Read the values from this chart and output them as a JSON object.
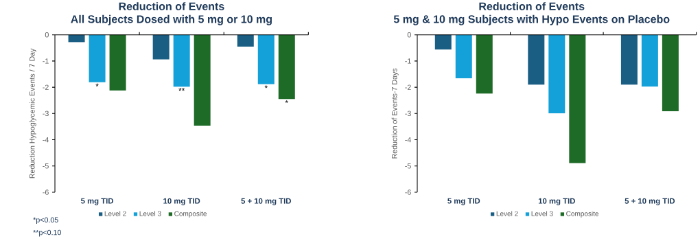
{
  "chart_data": [
    {
      "type": "bar",
      "title": "Reduction of Events",
      "subtitle": "All Subjects Dosed with 5 mg or 10 mg",
      "ylabel": "Reduction  Hypoglycemic Events / 7 Day",
      "categories": [
        "5 mg TID",
        "10 mg TID",
        "5 + 10 mg TID"
      ],
      "series": [
        {
          "name": "Level 2",
          "color": "#1a5e84",
          "values": [
            -0.28,
            -0.94,
            -0.45
          ]
        },
        {
          "name": "Level 3",
          "color": "#14a0d8",
          "values": [
            -1.81,
            -1.98,
            -1.88
          ]
        },
        {
          "name": "Composite",
          "color": "#1e6b27",
          "values": [
            -2.12,
            -3.46,
            -2.45
          ]
        }
      ],
      "ylim": [
        -6,
        0
      ],
      "yticks": [
        -6,
        -5,
        -4,
        -3,
        -2,
        -1,
        0
      ],
      "grid": false,
      "legend": "bottom",
      "annotations": [
        {
          "text": "*",
          "x": "5 mg TID",
          "y": -1.81
        },
        {
          "text": "**",
          "x": "10 mg TID",
          "y": -1.98
        },
        {
          "text": "*",
          "x": "5 + 10 mg TID",
          "y": -1.88
        },
        "*",
        "*p<0.05",
        "**p<0.10"
      ]
    },
    {
      "type": "bar",
      "title": "Reduction of Events",
      "subtitle": "5 mg & 10 mg Subjects with Hypo Events on Placebo",
      "ylabel": "Reduction of Events-7 Days",
      "categories": [
        "5 mg TID",
        "10 mg TID",
        "5 + 10 mg TID"
      ],
      "series": [
        {
          "name": "Level 2",
          "color": "#1a5e84",
          "values": [
            -0.56,
            -1.9,
            -1.9
          ]
        },
        {
          "name": "Level 3",
          "color": "#14a0d8",
          "values": [
            -1.66,
            -2.99,
            -1.97
          ]
        },
        {
          "name": "Composite",
          "color": "#1e6b27",
          "values": [
            -2.24,
            -4.89,
            -2.91
          ]
        }
      ],
      "ylim": [
        -6,
        0
      ],
      "yticks": [
        -6,
        -5,
        -4,
        -3,
        -2,
        -1,
        0
      ],
      "grid": false,
      "legend": "bottom"
    }
  ]
}
